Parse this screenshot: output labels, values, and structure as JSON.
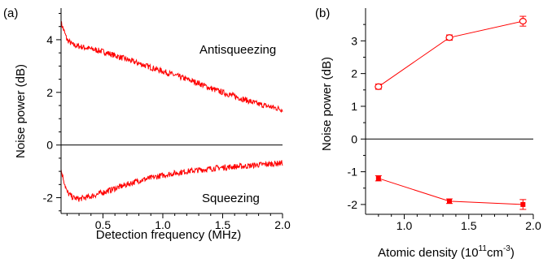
{
  "figure": {
    "panel_a_label": "(a)",
    "panel_b_label": "(b)"
  },
  "chart_data": [
    {
      "type": "line",
      "panel": "(a)",
      "xlabel": "Detection frequency (MHz)",
      "ylabel": "Noise power (dB)",
      "xlim": [
        0.15,
        2.0
      ],
      "ylim": [
        -2.6,
        5.2
      ],
      "x_ticks": [
        "0.5",
        "1.0",
        "1.5",
        "2.0"
      ],
      "y_ticks": [
        "-2",
        "0",
        "2",
        "4"
      ],
      "zero_line": 0,
      "annotations": [
        "Antisqueezing",
        "Squeezing"
      ],
      "color": "#ff0000",
      "series": [
        {
          "x": [
            0.15,
            0.2,
            0.25,
            0.3,
            0.4,
            0.5,
            0.6,
            0.7,
            0.8,
            0.9,
            1.0,
            1.1,
            1.2,
            1.3,
            1.4,
            1.5,
            1.6,
            1.7,
            1.8,
            1.9,
            2.0
          ],
          "y": [
            4.65,
            4.0,
            3.8,
            3.75,
            3.65,
            3.55,
            3.4,
            3.25,
            3.1,
            2.95,
            2.8,
            2.65,
            2.5,
            2.35,
            2.15,
            2.0,
            1.85,
            1.7,
            1.55,
            1.45,
            1.35
          ]
        },
        {
          "x": [
            0.15,
            0.2,
            0.25,
            0.3,
            0.4,
            0.5,
            0.6,
            0.7,
            0.8,
            0.9,
            1.0,
            1.1,
            1.2,
            1.3,
            1.4,
            1.5,
            1.6,
            1.7,
            1.8,
            1.9,
            2.0
          ],
          "y": [
            -0.95,
            -1.8,
            -2.0,
            -2.05,
            -1.95,
            -1.8,
            -1.65,
            -1.5,
            -1.35,
            -1.25,
            -1.15,
            -1.07,
            -1.0,
            -0.95,
            -0.9,
            -0.85,
            -0.82,
            -0.8,
            -0.75,
            -0.72,
            -0.68
          ]
        }
      ]
    },
    {
      "type": "scatter",
      "panel": "(b)",
      "xlabel": "Atomic density (10",
      "xlabel_sup1": "11",
      "xlabel_mid": "cm",
      "xlabel_sup2": "-3",
      "xlabel_end": ")",
      "ylabel": "Noise power (dB)",
      "xlim": [
        0.7,
        2.0
      ],
      "ylim": [
        -2.3,
        4.0
      ],
      "x_ticks": [
        "1.0",
        "1.5",
        "2.0"
      ],
      "y_ticks": [
        "-2",
        "-1",
        "0",
        "1",
        "2",
        "3"
      ],
      "zero_line": 0,
      "color": "#ff0000",
      "series": [
        {
          "marker": "open-circle",
          "x": [
            0.8,
            1.35,
            1.92
          ],
          "y": [
            1.6,
            3.1,
            3.6
          ],
          "yerr": [
            0.08,
            0.08,
            0.15
          ]
        },
        {
          "marker": "filled-square",
          "x": [
            0.8,
            1.35,
            1.92
          ],
          "y": [
            -1.2,
            -1.9,
            -2.0
          ],
          "yerr": [
            0.08,
            0.07,
            0.15
          ]
        }
      ]
    }
  ]
}
